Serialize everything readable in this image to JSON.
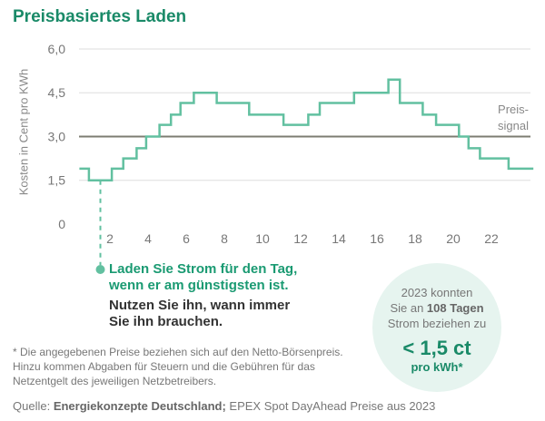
{
  "title": "Preisbasiertes Laden",
  "chart_data": {
    "type": "line",
    "step": true,
    "ylabel": "Kosten in Cent pro KWh",
    "ylim": [
      0,
      6
    ],
    "xlim": [
      0,
      24
    ],
    "yticks": [
      "0",
      "1,5",
      "3,0",
      "4,5",
      "6,0"
    ],
    "xticks": [
      "2",
      "4",
      "6",
      "8",
      "10",
      "12",
      "14",
      "16",
      "18",
      "20",
      "22"
    ],
    "grid": true,
    "steps_hour_start": [
      0.4,
      0.9,
      2.1,
      2.7,
      3.4,
      3.9,
      4.6,
      5.2,
      5.7,
      6.4,
      7.6,
      9.3,
      11.1,
      12.4,
      13.0,
      14.8,
      16.6,
      17.2,
      18.4,
      19.1,
      20.3,
      20.8,
      21.4,
      22.9
    ],
    "values": [
      1.9,
      1.5,
      1.9,
      2.25,
      2.6,
      3.0,
      3.4,
      3.75,
      4.15,
      4.5,
      4.15,
      3.75,
      3.4,
      3.75,
      4.15,
      4.5,
      4.95,
      4.15,
      3.75,
      3.4,
      3.0,
      2.6,
      2.25,
      1.9
    ],
    "reference_line": {
      "value": 3.0,
      "label_line1": "Preis-",
      "label_line2": "signal"
    },
    "colors": {
      "series": "#62c0a0",
      "reference": "#7d7d72",
      "grid": "#dddddd"
    }
  },
  "callout": {
    "line1": "Laden Sie Strom für den Tag,",
    "line2": "wenn er am günstigsten ist.",
    "line3": "Nutzen Sie ihn, wann immer",
    "line4": "Sie ihn brauchen."
  },
  "circle": {
    "l1": "2023 konnten",
    "l2a": "Sie an ",
    "l2b": "108 Tagen",
    "l3": "Strom beziehen zu",
    "big": "< 1,5 ct",
    "small": "pro kWh*"
  },
  "note": "* Die angegebenen Preise beziehen sich auf den Netto-Börsenpreis. Hinzu kommen Abgaben für Steuern und die Gebühren für das Netzentgelt des jeweiligen Netzbetreibers.",
  "source": {
    "prefix": "Quelle: ",
    "org": "Energiekonzepte Deutschland;",
    "rest": " EPEX Spot DayAhead Preise aus 2023"
  }
}
